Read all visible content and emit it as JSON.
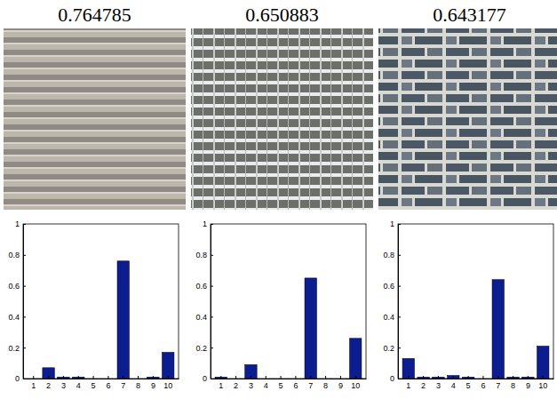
{
  "chart_data": [
    {
      "type": "bar",
      "title": "0.764785",
      "categories": [
        "1",
        "2",
        "3",
        "4",
        "5",
        "6",
        "7",
        "8",
        "9",
        "10"
      ],
      "values": [
        0,
        0.07,
        0.01,
        0.01,
        0,
        0,
        0.76,
        0,
        0.01,
        0.17
      ],
      "color": "#0b1d8f",
      "ylim": [
        0,
        1
      ],
      "yticks": [
        0,
        0.2,
        0.4,
        0.6,
        0.8,
        1
      ]
    },
    {
      "type": "bar",
      "title": "0.650883",
      "categories": [
        "1",
        "2",
        "3",
        "4",
        "5",
        "6",
        "7",
        "8",
        "9",
        "10"
      ],
      "values": [
        0.01,
        0,
        0.09,
        0,
        0,
        0,
        0.65,
        0,
        0,
        0.26
      ],
      "color": "#0b1d8f",
      "ylim": [
        0,
        1
      ],
      "yticks": [
        0,
        0.2,
        0.4,
        0.6,
        0.8,
        1
      ]
    },
    {
      "type": "bar",
      "title": "0.643177",
      "categories": [
        "1",
        "2",
        "3",
        "4",
        "5",
        "6",
        "7",
        "8",
        "9",
        "10"
      ],
      "values": [
        0.13,
        0.01,
        0.01,
        0.02,
        0.01,
        0,
        0.64,
        0.01,
        0.01,
        0.21
      ],
      "color": "#0b1d8f",
      "ylim": [
        0,
        1
      ],
      "yticks": [
        0,
        0.2,
        0.4,
        0.6,
        0.8,
        1
      ]
    }
  ]
}
